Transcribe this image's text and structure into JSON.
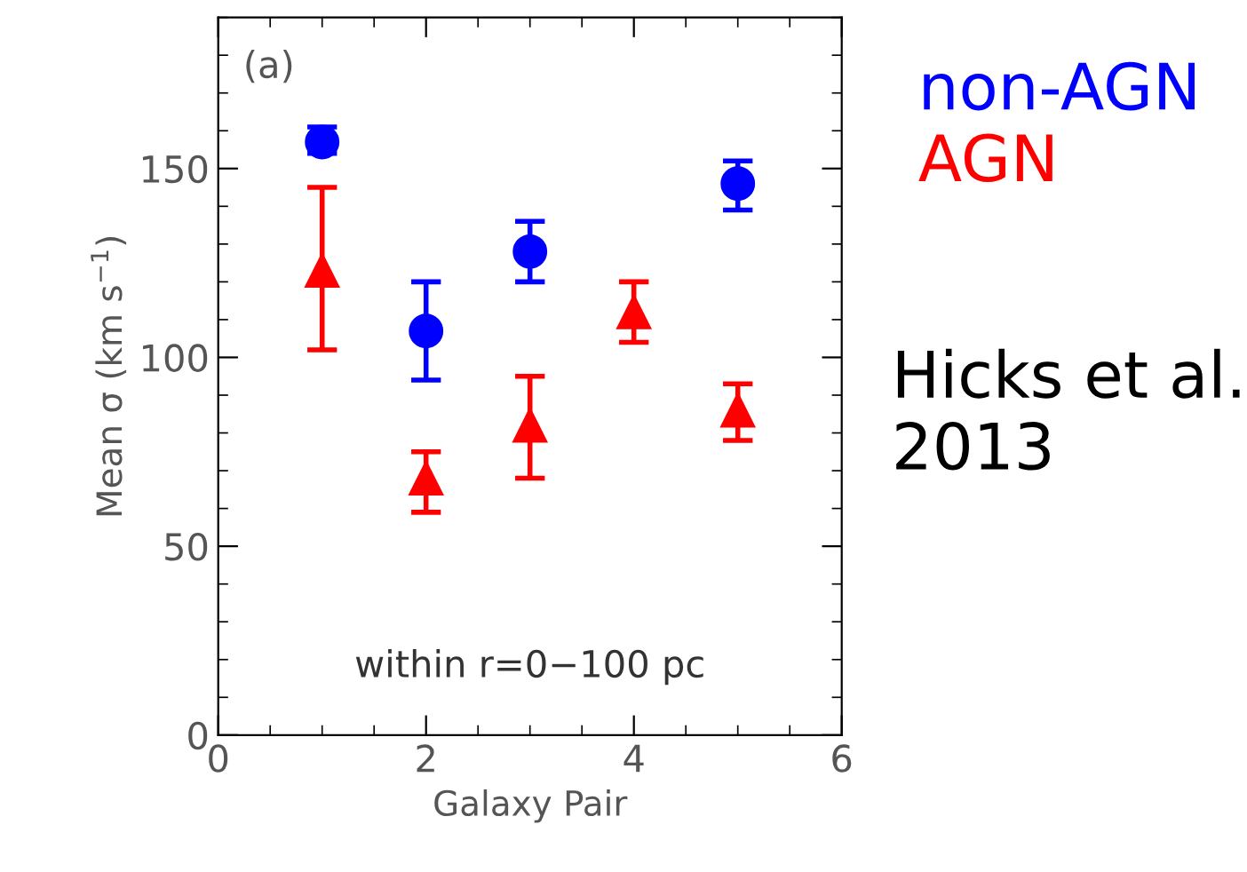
{
  "chart_data": {
    "type": "scatter",
    "xlabel": "Galaxy Pair",
    "ylabel": "Mean σ (km s$^{−1}$)",
    "xlim": [
      0,
      6
    ],
    "xticks": [
      0,
      2,
      4,
      6
    ],
    "ylim": [
      0,
      190
    ],
    "yticks": [
      0,
      50,
      100,
      150
    ],
    "grid": false,
    "legend": "top right",
    "series": [
      {
        "name": "non-AGN",
        "color": "#0000ff",
        "marker": "circle",
        "x": [
          1,
          2,
          3,
          5
        ],
        "values": [
          157,
          107,
          128,
          146
        ],
        "errors": [
          [
            154,
            161
          ],
          [
            94,
            120
          ],
          [
            120,
            136
          ],
          [
            139,
            152
          ]
        ]
      },
      {
        "name": "AGN",
        "color": "#ff0000",
        "marker": "triangle",
        "x": [
          1,
          2,
          3,
          4,
          5
        ],
        "values": [
          123,
          68,
          82,
          112,
          86
        ],
        "errors": [
          [
            102,
            145
          ],
          [
            59,
            75
          ],
          [
            68,
            95
          ],
          [
            104,
            120
          ],
          [
            78,
            93
          ]
        ]
      }
    ],
    "annotations": [
      "(a)",
      "within r=0−100 pc",
      "Hicks et al. 2013"
    ]
  }
}
